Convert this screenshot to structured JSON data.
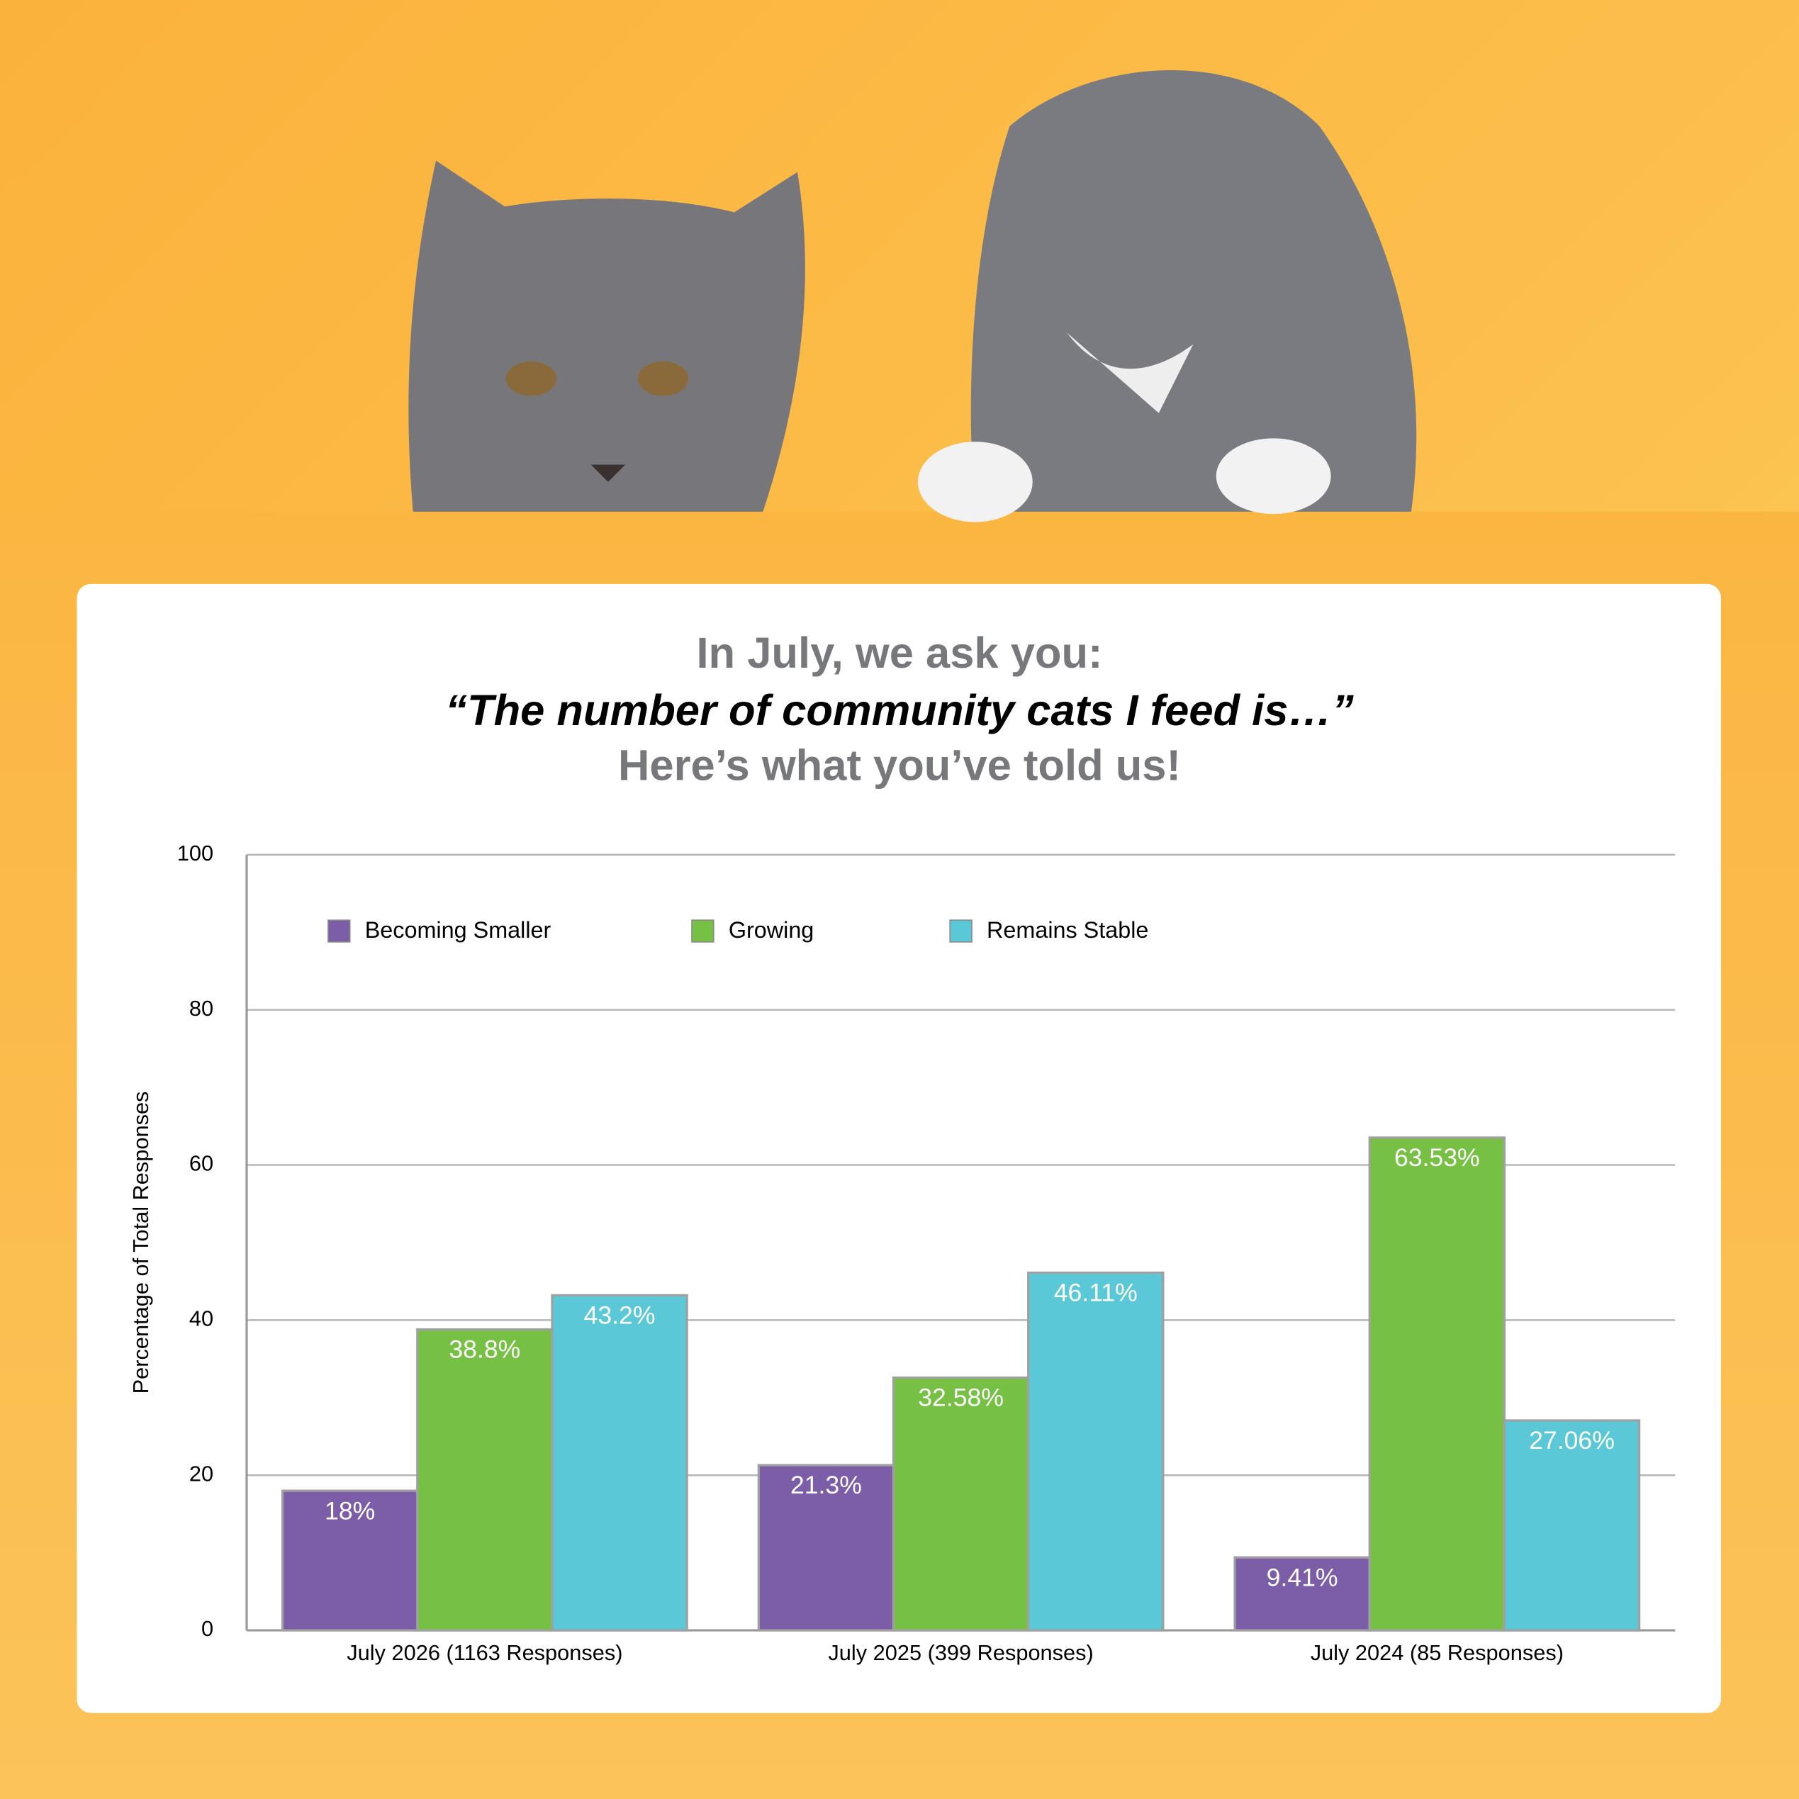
{
  "chart_data": {
    "type": "bar",
    "title": "In July, we ask you:",
    "subtitle": "“The number of community cats I feed is…”",
    "caption": "Here’s what you’ve told us!",
    "y_label": "Percentage of Total Responses",
    "categories": [
      "July 2026 (1163 Responses)",
      "July 2025 (399 Responses)",
      "July 2024 (85 Responses)"
    ],
    "series": [
      {
        "name": "Becoming Smaller",
        "color": "#7b5ea7",
        "values": [
          18,
          21.3,
          9.41
        ],
        "value_labels": [
          "18%",
          "21.3%",
          "9.41%"
        ]
      },
      {
        "name": "Growing",
        "color": "#76c043",
        "values": [
          38.8,
          32.58,
          63.53
        ],
        "value_labels": [
          "38.8%",
          "32.58%",
          "63.53%"
        ]
      },
      {
        "name": "Remains Stable",
        "color": "#5bc8d8",
        "values": [
          43.2,
          46.11,
          27.06
        ],
        "value_labels": [
          "43.2%",
          "46.11%",
          "27.06%"
        ]
      }
    ],
    "ylim": [
      0,
      100
    ],
    "yticks": [
      0,
      20,
      40,
      60,
      80,
      100
    ],
    "grid": true,
    "legend": "top"
  }
}
